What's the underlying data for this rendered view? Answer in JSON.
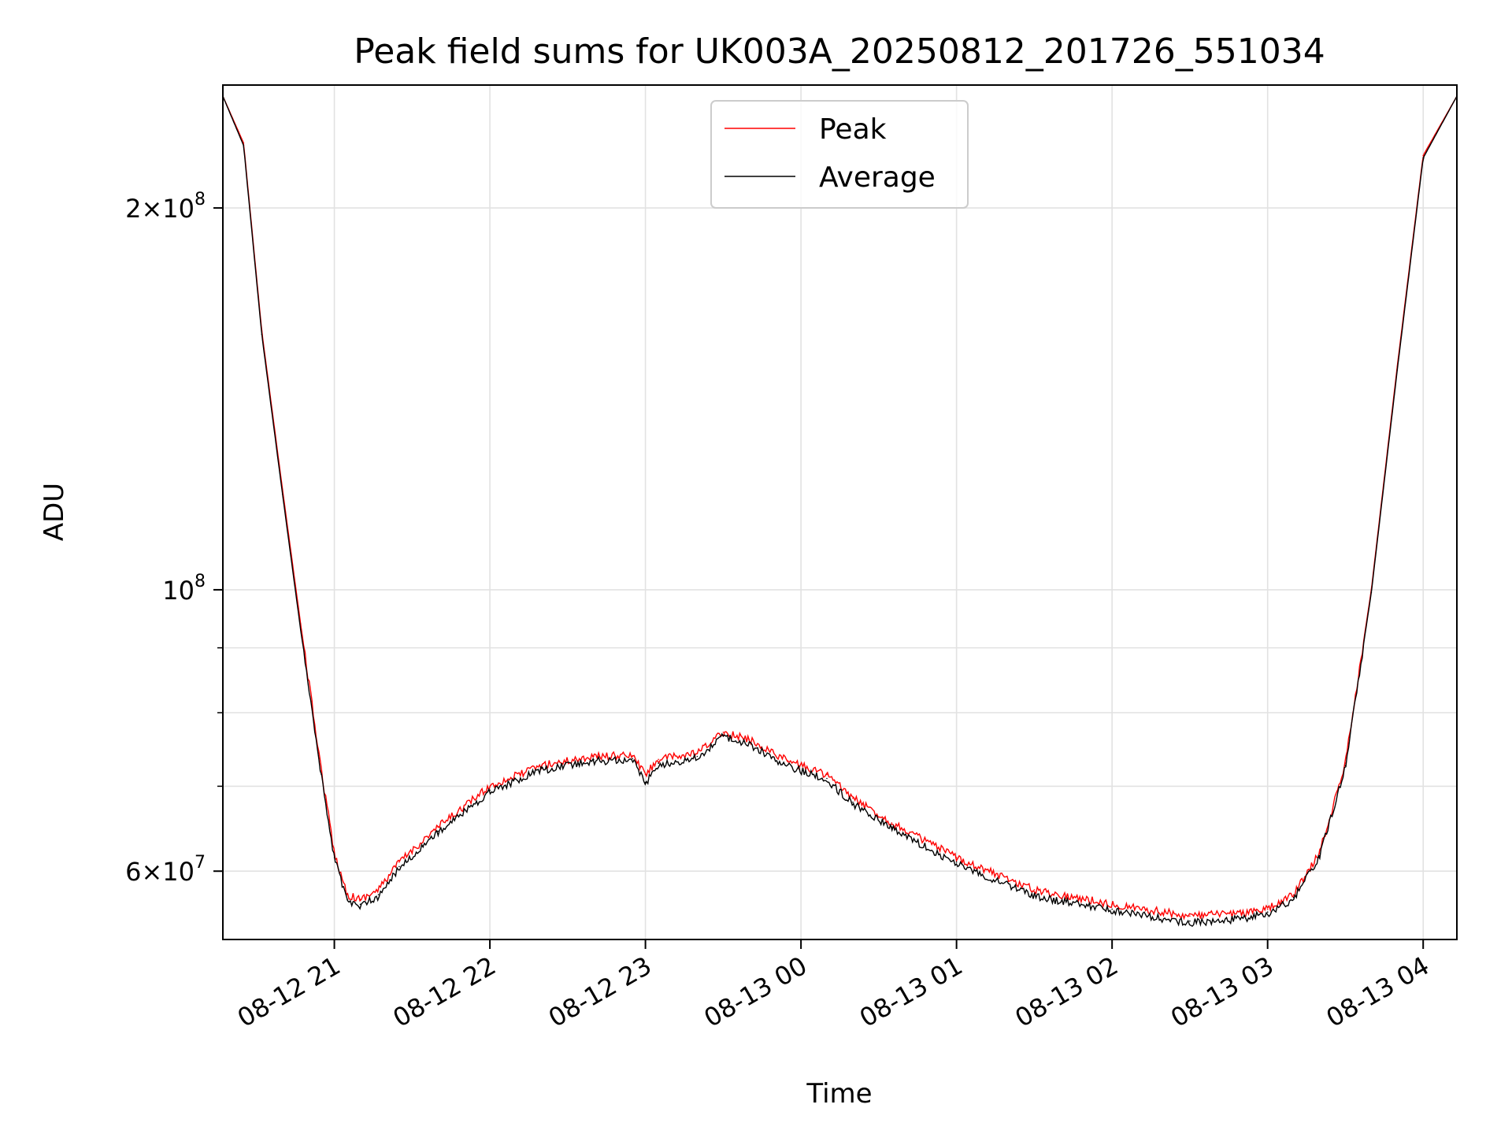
{
  "chart_data": {
    "type": "line",
    "title": "Peak field sums for UK003A_20250812_201726_551034",
    "xlabel": "Time",
    "ylabel": "ADU",
    "y_scale": "log",
    "ylim": [
      53000000,
      250000000
    ],
    "xlim": [
      "2025-08-12 20:17",
      "2025-08-13 04:13"
    ],
    "grid": true,
    "legend_position": "upper center",
    "x_ticks": [
      "08-12 21",
      "08-12 22",
      "08-12 23",
      "08-13 00",
      "08-13 01",
      "08-13 02",
      "08-13 03",
      "08-13 04"
    ],
    "x_tick_times": [
      "2025-08-12 21:00",
      "2025-08-12 22:00",
      "2025-08-12 23:00",
      "2025-08-13 00:00",
      "2025-08-13 01:00",
      "2025-08-13 02:00",
      "2025-08-13 03:00",
      "2025-08-13 04:00"
    ],
    "y_major_ticks": [
      {
        "value": 60000000,
        "mantissa": "6",
        "exponent": "7"
      },
      {
        "value": 100000000,
        "mantissa": "",
        "exponent": "8"
      },
      {
        "value": 200000000,
        "mantissa": "2",
        "exponent": "8"
      }
    ],
    "y_minor_ticks": [
      70000000,
      80000000,
      90000000
    ],
    "x": [
      "2025-08-12 20:17",
      "2025-08-12 20:25",
      "2025-08-12 20:32",
      "2025-08-12 20:40",
      "2025-08-12 20:47",
      "2025-08-12 20:55",
      "2025-08-12 21:00",
      "2025-08-12 21:05",
      "2025-08-12 21:10",
      "2025-08-12 21:17",
      "2025-08-12 21:25",
      "2025-08-12 21:40",
      "2025-08-12 22:00",
      "2025-08-12 22:20",
      "2025-08-12 22:40",
      "2025-08-12 22:55",
      "2025-08-12 23:00",
      "2025-08-12 23:05",
      "2025-08-12 23:20",
      "2025-08-12 23:30",
      "2025-08-12 23:40",
      "2025-08-12 23:55",
      "2025-08-13 00:10",
      "2025-08-13 00:20",
      "2025-08-13 00:35",
      "2025-08-13 01:00",
      "2025-08-13 01:30",
      "2025-08-13 02:00",
      "2025-08-13 02:30",
      "2025-08-13 02:50",
      "2025-08-13 03:00",
      "2025-08-13 03:10",
      "2025-08-13 03:20",
      "2025-08-13 03:30",
      "2025-08-13 03:40",
      "2025-08-13 03:50",
      "2025-08-13 04:00",
      "2025-08-13 04:13"
    ],
    "series": [
      {
        "name": "Peak",
        "color": "#ff0000",
        "values": [
          245000000,
          225000000,
          160000000,
          120000000,
          94000000,
          72000000,
          62000000,
          57500000,
          57000000,
          58000000,
          61000000,
          65000000,
          70000000,
          72700000,
          73900000,
          74000000,
          71500000,
          73500000,
          74300000,
          77200000,
          76200000,
          73300000,
          71500000,
          68500000,
          65500000,
          61500000,
          58000000,
          56500000,
          55300000,
          55600000,
          56000000,
          57500000,
          62000000,
          73000000,
          100000000,
          150000000,
          220000000,
          245000000
        ]
      },
      {
        "name": "Average",
        "color": "#000000",
        "values": [
          245000000,
          224000000,
          159000000,
          119000000,
          93000000,
          71500000,
          61500000,
          57000000,
          56500000,
          57500000,
          60500000,
          64500000,
          69500000,
          72300000,
          73500000,
          73600000,
          70500000,
          73000000,
          73900000,
          76800000,
          75800000,
          72800000,
          71000000,
          68000000,
          65000000,
          61000000,
          57500000,
          56000000,
          54800000,
          55200000,
          55700000,
          57200000,
          61700000,
          72700000,
          99500000,
          149000000,
          219000000,
          245000000
        ]
      }
    ]
  }
}
